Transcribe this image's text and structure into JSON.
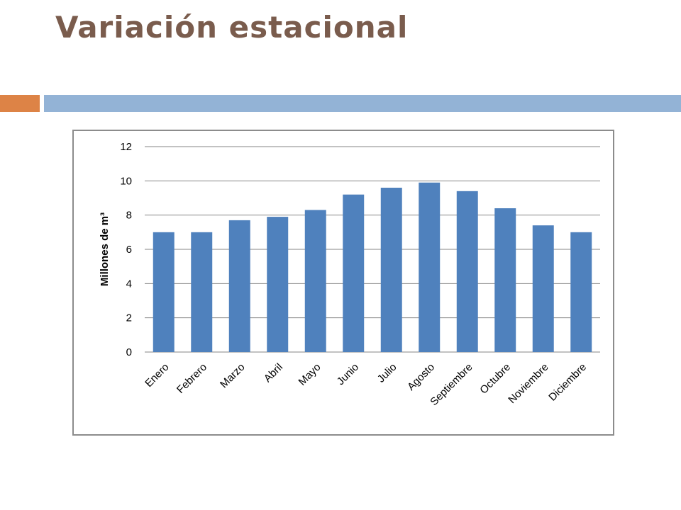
{
  "slide": {
    "title": "Variación estacional",
    "title_color": "#7a5c4d",
    "accent_colors": {
      "orange": "#dd8346",
      "blue": "#93b3d6"
    }
  },
  "chart_data": {
    "type": "bar",
    "categories": [
      "Enero",
      "Febrero",
      "Marzo",
      "Abril",
      "Mayo",
      "Junio",
      "Julio",
      "Agosto",
      "Septiembre",
      "Octubre",
      "Noviembre",
      "Diciembre"
    ],
    "values": [
      7.0,
      7.0,
      7.7,
      7.9,
      8.3,
      9.2,
      9.6,
      9.9,
      9.4,
      8.4,
      7.4,
      7.0
    ],
    "title": "",
    "xlabel": "",
    "ylabel": "Millones de m³",
    "ylim": [
      0,
      12
    ],
    "yticks": [
      0,
      2,
      4,
      6,
      8,
      10,
      12
    ],
    "grid": true,
    "legend": "none",
    "bar_color": "#4f81bd",
    "grid_color": "#868686"
  }
}
